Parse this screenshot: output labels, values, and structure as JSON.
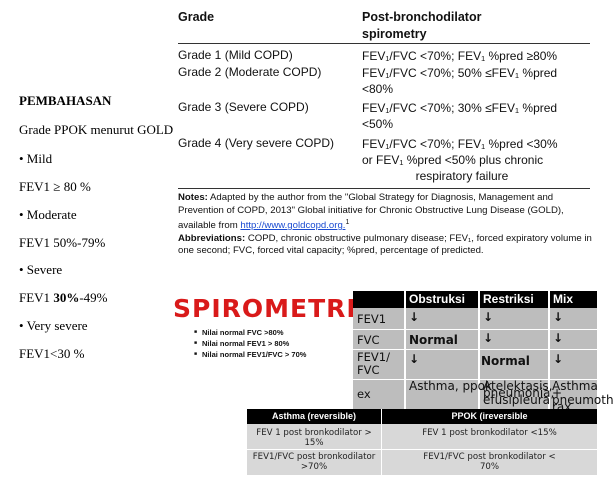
{
  "left_notes": {
    "heading": "PEMBAHASAN",
    "subtitle": "Grade PPOK menurut GOLD",
    "items": [
      {
        "bullet": "• Mild",
        "value": "FEV1 ≥ 80 %"
      },
      {
        "bullet": "• Moderate",
        "value": "FEV1 50%-79%"
      },
      {
        "bullet": "• Severe",
        "value_prefix": "FEV1 ",
        "value_bold": "30%",
        "value_suffix": "-49%"
      },
      {
        "bullet": "• Very severe",
        "value": "FEV1<30 %"
      }
    ]
  },
  "gold_table": {
    "col_grade": "Grade",
    "col_spiro_1": "Post-bronchodilator",
    "col_spiro_2": "spirometry",
    "rows": [
      {
        "grade": "Grade 1 (Mild COPD)",
        "spiro": [
          "FEV₁/FVC <70%; FEV₁ %pred ≥80%"
        ]
      },
      {
        "grade": "Grade 2 (Moderate COPD)",
        "spiro": [
          "FEV₁/FVC <70%; 50% ≤FEV₁ %pred",
          "<80%"
        ]
      },
      {
        "grade": "Grade 3 (Severe COPD)",
        "spiro": [
          "FEV₁/FVC <70%; 30% ≤FEV₁ %pred",
          "<50%"
        ]
      },
      {
        "grade": "Grade 4 (Very severe COPD)",
        "spiro": [
          "FEV₁/FVC <70%; FEV₁ %pred <30%",
          "or FEV₁ %pred <50% plus chronic",
          "respiratory failure"
        ]
      }
    ],
    "notes_label": "Notes:",
    "notes_text": "Adapted by the author from the \"Global Strategy for Diagnosis, Management and Prevention of COPD, 2013\" Global initiative for Chronic Obstructive Lung Disease (GOLD), available from ",
    "notes_link": "http://www.goldcopd.org.",
    "notes_sup": "1",
    "abbrev_label": "Abbreviations:",
    "abbrev_text": "COPD, chronic obstructive pulmonary disease; FEV₁, forced expiratory volume in one second; FVC, forced vital capacity; %pred, percentage of predicted."
  },
  "spirometri": {
    "title": "SPIROMETRI",
    "bullets": [
      "Nilai normal FVC >80%",
      "Nilai normal FEV1 > 80%",
      "Nilai normal FEV1/FVC > 70%"
    ]
  },
  "obstruction_table": {
    "headers": [
      "Obstruksi",
      "Restriksi",
      "Mix"
    ],
    "rows": [
      {
        "label": "FEV1",
        "cells": [
          "↓",
          "↓",
          "↓"
        ]
      },
      {
        "label": "FVC",
        "cells": [
          "Normal",
          "↓",
          "↓"
        ]
      },
      {
        "label": "FEV1/\nFVC",
        "cells": [
          "↓",
          "Normal",
          "↓"
        ]
      },
      {
        "label": "ex",
        "cells": [
          "Asthma,  ppok",
          "Atelektasis,\npneumonia,\nefusipleura",
          "Asthma\n+ pneumotho\nrax"
        ]
      }
    ],
    "colors": {
      "arrow": "#e03a2a",
      "normal": "#1f9d8a",
      "header": "#000000",
      "body": "#bdbdbd"
    }
  },
  "asthma_table": {
    "headers": [
      "Asthma (reversible)",
      "PPOK (ireversible"
    ],
    "rows": [
      [
        "FEV 1 post bronkodilator >\n15%",
        "FEV 1 post bronkodilator <15%"
      ],
      [
        "FEV1/FVC post bronkodilator\n>70%",
        "FEV1/FVC post bronkodilator <\n70%"
      ]
    ]
  }
}
